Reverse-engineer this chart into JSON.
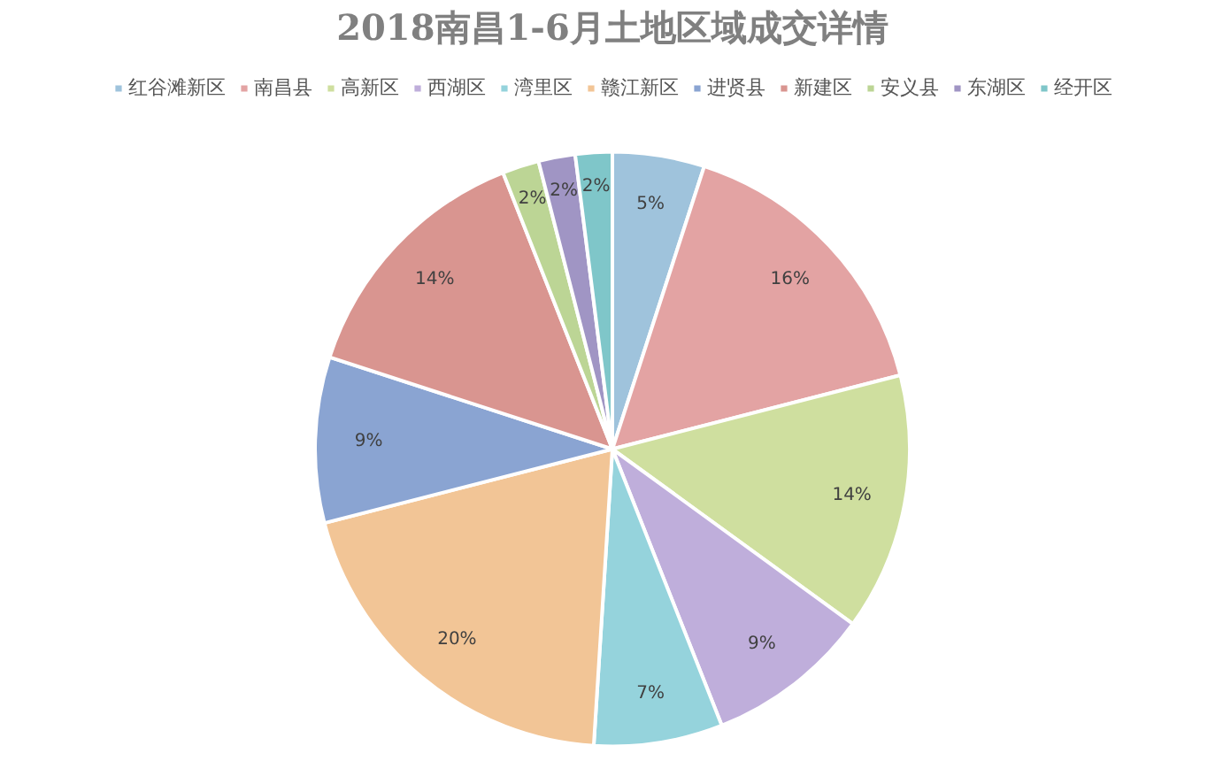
{
  "chart_data": {
    "type": "pie",
    "title": "2018南昌1-6月土地区域成交详情",
    "categories": [
      "红谷滩新区",
      "南昌县",
      "高新区",
      "西湖区",
      "湾里区",
      "赣江新区",
      "进贤县",
      "新建区",
      "安义县",
      "东湖区",
      "经开区"
    ],
    "values": [
      5,
      16,
      14,
      9,
      7,
      20,
      9,
      14,
      2,
      2,
      2
    ],
    "value_labels": [
      "5%",
      "16%",
      "14%",
      "9%",
      "7%",
      "20%",
      "9%",
      "14%",
      "2%",
      "2%",
      "2%"
    ],
    "colors": [
      "#9fc3dc",
      "#e3a3a3",
      "#cfdf9f",
      "#bfaedb",
      "#95d3dc",
      "#f2c596",
      "#8aa4d2",
      "#d99590",
      "#bcd595",
      "#a095c4",
      "#7fc6c9"
    ],
    "legend": "top"
  }
}
